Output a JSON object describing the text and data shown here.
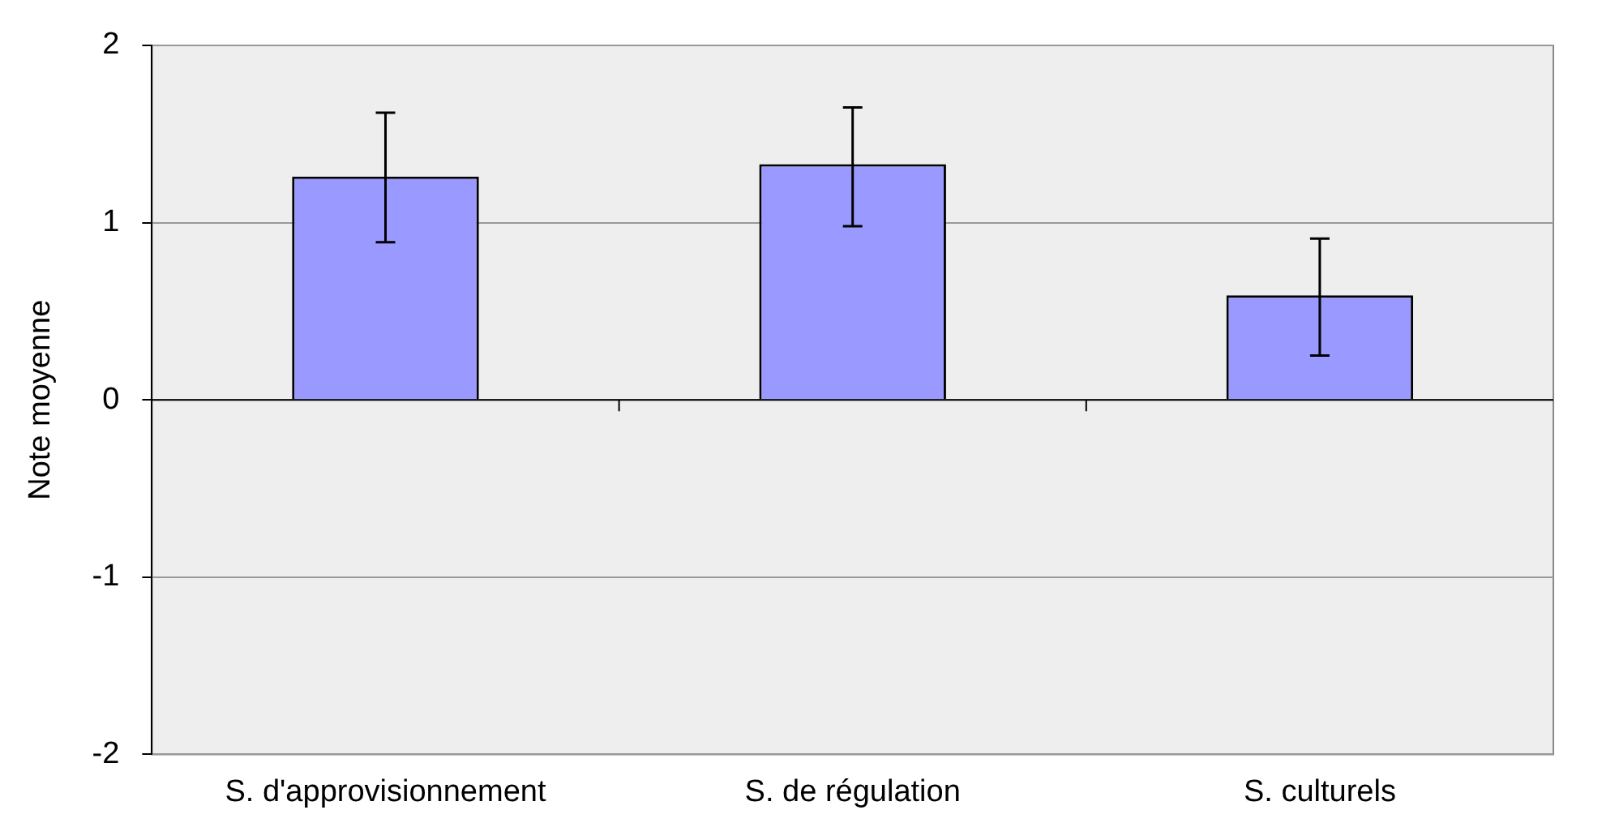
{
  "chart_data": {
    "type": "bar",
    "ylabel": "Note moyenne",
    "categories": [
      "S. d'approvisionnement",
      "S. de régulation",
      "S. culturels"
    ],
    "values": [
      1.26,
      1.33,
      0.59
    ],
    "errors": [
      [
        0.89,
        1.62
      ],
      [
        0.98,
        1.65
      ],
      [
        0.25,
        0.91
      ]
    ],
    "color": "#9999ff",
    "ylim": [
      -2,
      2
    ],
    "yticks": [
      -2,
      -1,
      0,
      1,
      2
    ],
    "grid": "y",
    "legend": false
  }
}
